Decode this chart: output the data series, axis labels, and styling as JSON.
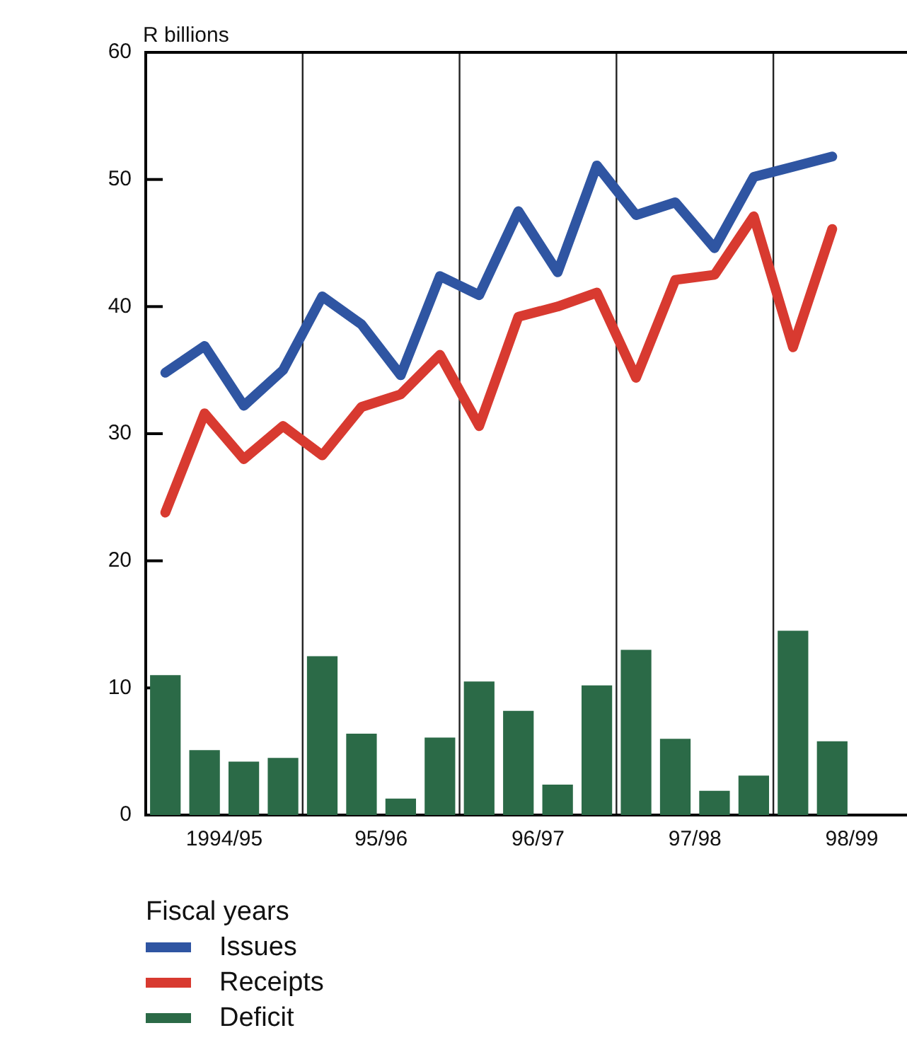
{
  "chart_data": {
    "type": "line",
    "ylabel": "R billions",
    "legend_title": "Fiscal years",
    "categories": [
      null,
      null,
      null,
      null,
      null,
      null,
      null,
      null,
      null,
      null,
      null,
      null,
      null,
      null,
      null,
      null,
      null,
      null
    ],
    "annotations": [
      "1994/95",
      "95/96",
      "96/97",
      "97/98",
      "98/99"
    ],
    "ylim": [
      0,
      60
    ],
    "yticks": [
      0,
      10,
      20,
      30,
      40,
      50,
      60
    ],
    "series": [
      {
        "name": "Issues",
        "color": "#2f55a2",
        "values": [
          34.8,
          36.9,
          32.2,
          35.0,
          40.8,
          38.6,
          34.6,
          42.4,
          40.9,
          47.5,
          42.7,
          51.1,
          47.2,
          48.2,
          44.6,
          50.2,
          51.0,
          51.8
        ]
      },
      {
        "name": "Receipts",
        "color": "#d83a30",
        "values": [
          23.8,
          31.6,
          28.0,
          30.6,
          28.3,
          32.1,
          33.1,
          36.2,
          30.6,
          39.2,
          40.0,
          41.1,
          34.4,
          42.1,
          42.5,
          47.1,
          36.8,
          46.1
        ]
      },
      {
        "name": "Deficit",
        "type": "bar",
        "color": "#2b6a47",
        "values": [
          11.0,
          5.1,
          4.2,
          4.5,
          12.5,
          6.4,
          1.3,
          6.1,
          10.5,
          8.2,
          2.4,
          10.2,
          13.0,
          6.0,
          1.9,
          3.1,
          14.5,
          5.8
        ]
      }
    ],
    "grid": false,
    "legend": "bottom left",
    "marker": "none",
    "line_style": "solid"
  }
}
